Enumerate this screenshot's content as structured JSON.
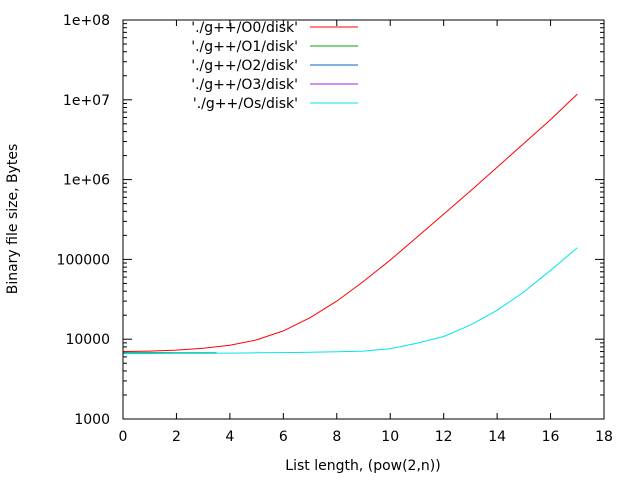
{
  "chart_data": {
    "type": "line",
    "title": "",
    "xlabel": "List length, (pow(2,n))",
    "ylabel": "Binary file size, Bytes",
    "xlim": [
      0,
      18
    ],
    "ylim": [
      1000,
      100000000
    ],
    "yscale": "log",
    "grid": false,
    "legend_position": "top-left",
    "x_ticks": [
      0,
      2,
      4,
      6,
      8,
      10,
      12,
      14,
      16,
      18
    ],
    "x_tick_labels": [
      "0",
      "2",
      "4",
      "6",
      "8",
      "10",
      "12",
      "14",
      "16",
      "18"
    ],
    "y_ticks": [
      1000,
      10000,
      100000,
      1000000,
      10000000,
      100000000
    ],
    "y_tick_labels": [
      "1000",
      "10000",
      "100000",
      "1e+06",
      "1e+07",
      "1e+08"
    ],
    "series": [
      {
        "name": "'./g++/O0/disk'",
        "color": "#ff0000",
        "x": [
          0,
          1,
          2,
          3,
          4,
          5,
          6,
          7,
          8,
          9,
          10,
          11,
          12,
          13,
          14,
          15,
          16,
          17
        ],
        "y": [
          7000,
          7100,
          7300,
          7700,
          8400,
          9800,
          12700,
          18600,
          30000,
          53000,
          98000,
          190000,
          370000,
          720000,
          1430000,
          2830000,
          5650000,
          11800000
        ]
      },
      {
        "name": "'./g++/O1/disk'",
        "color": "#00aa00",
        "x": [
          0,
          1,
          2,
          3,
          3.5
        ],
        "y": [
          6750,
          6750,
          6750,
          6750,
          6750
        ]
      },
      {
        "name": "'./g++/O2/disk'",
        "color": "#0066cc",
        "x": [
          0,
          1,
          2,
          3,
          3.5
        ],
        "y": [
          6700,
          6700,
          6700,
          6700,
          6700
        ]
      },
      {
        "name": "'./g++/O3/disk'",
        "color": "#a020f0",
        "x": [],
        "y": []
      },
      {
        "name": "'./g++/Os/disk'",
        "color": "#00e5ee",
        "x": [
          0,
          1,
          2,
          3,
          4,
          5,
          6,
          7,
          8,
          9,
          10,
          11,
          12,
          13,
          14,
          15,
          16,
          17
        ],
        "y": [
          6600,
          6600,
          6650,
          6650,
          6700,
          6750,
          6800,
          6850,
          6950,
          7100,
          7600,
          8900,
          10800,
          15000,
          23000,
          39000,
          73000,
          140000
        ]
      }
    ]
  }
}
